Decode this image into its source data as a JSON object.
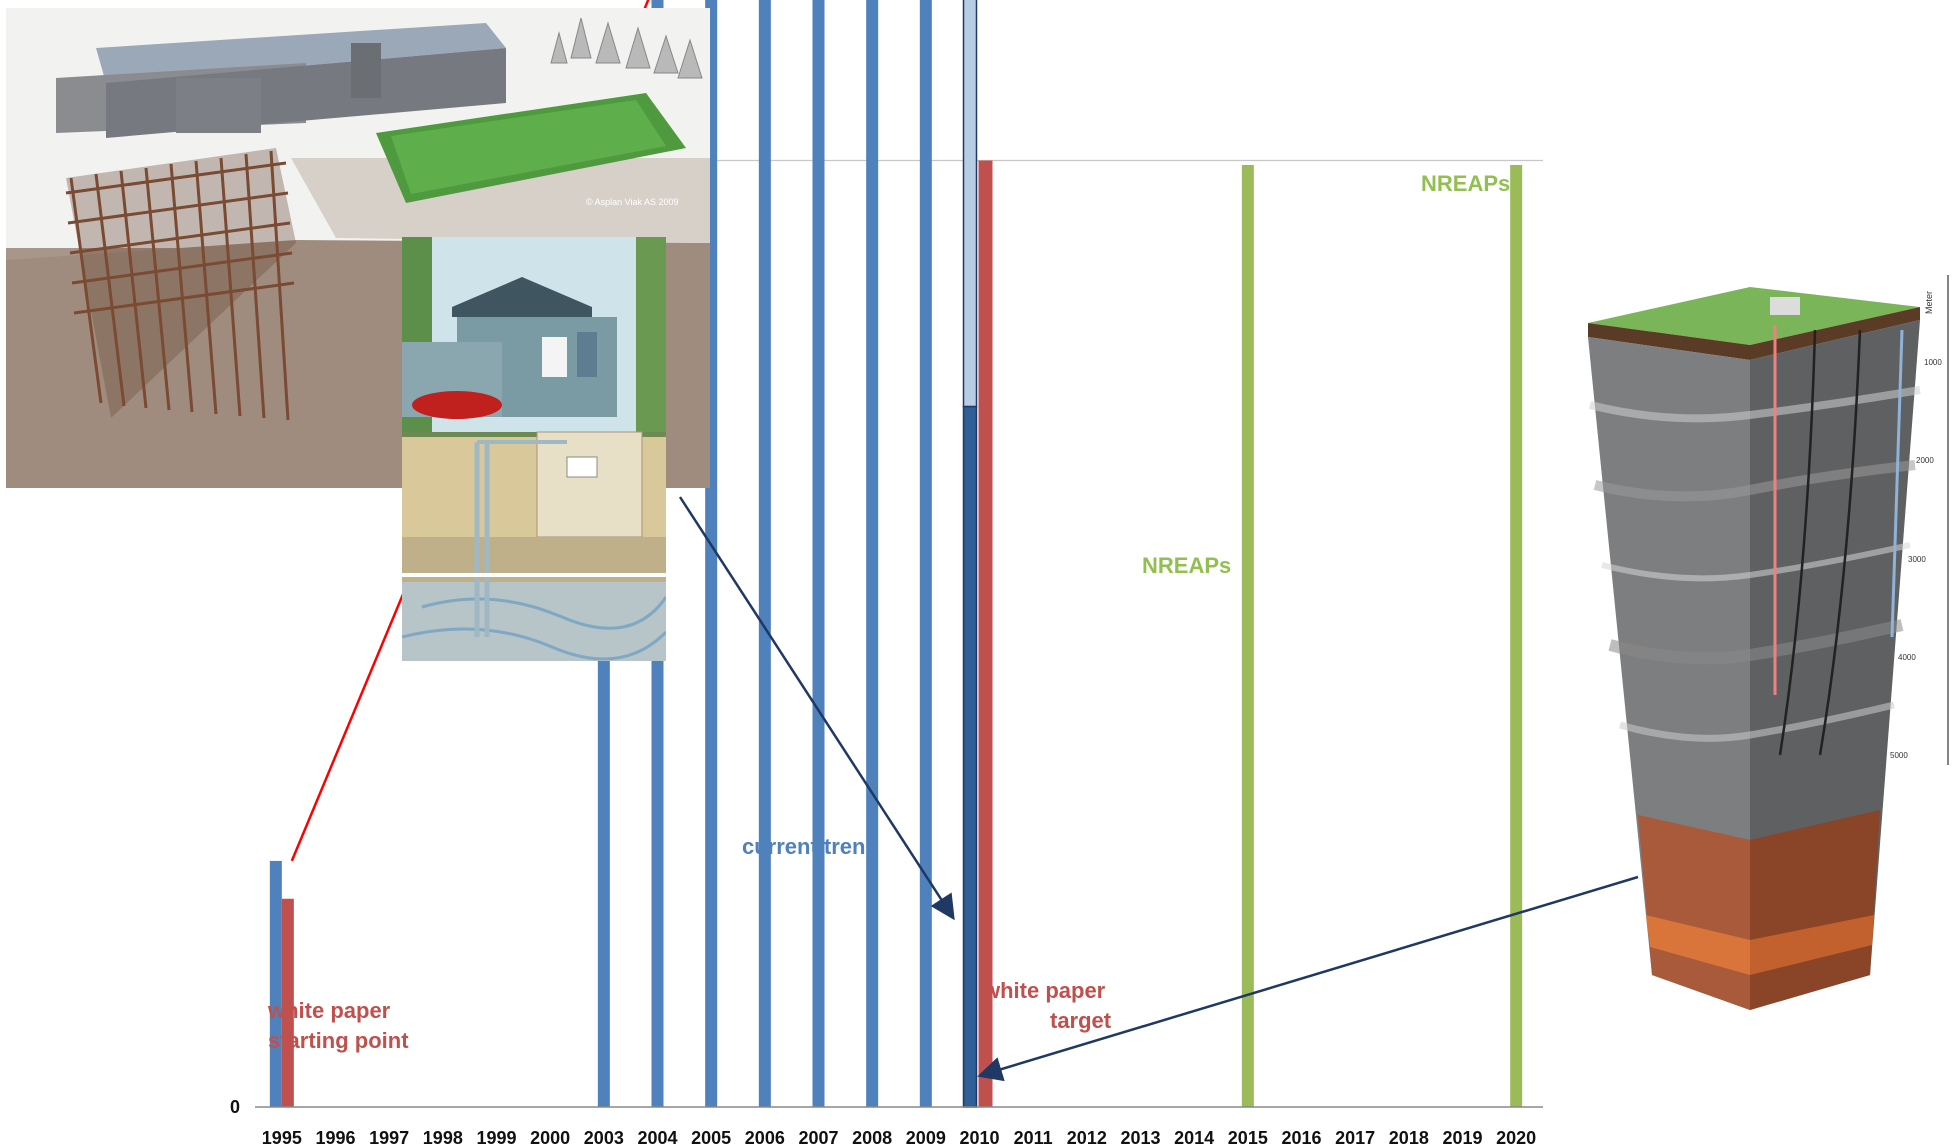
{
  "chart_data": {
    "type": "bar",
    "categories": [
      "1995",
      "1996",
      "1997",
      "1998",
      "1999",
      "2000",
      "2003",
      "2004",
      "2005",
      "2006",
      "2007",
      "2008",
      "2009",
      "2010",
      "2011",
      "2012",
      "2013",
      "2014",
      "2015",
      "2016",
      "2017",
      "2018",
      "2019",
      "2020"
    ],
    "yticks": [
      0,
      5000,
      10000,
      15000,
      20000,
      25000,
      30000
    ],
    "ylim": [
      0,
      50000
    ],
    "grid": true,
    "series": [
      {
        "values": [
          1300,
          0,
          0,
          0,
          0,
          0,
          5200,
          6100,
          7000,
          8000,
          9300,
          10800,
          12200,
          null,
          0,
          0,
          0,
          0,
          0,
          0,
          0,
          0,
          0,
          0
        ],
        "color": "#4f81bd"
      },
      {
        "values": [
          1100,
          0,
          0,
          0,
          0,
          0,
          0,
          0,
          0,
          0,
          0,
          0,
          0,
          5000,
          0,
          0,
          0,
          0,
          0,
          0,
          0,
          0,
          0,
          0
        ],
        "color": "#c0504d"
      },
      {
        "values": [
          0,
          0,
          0,
          0,
          0,
          0,
          0,
          0,
          0,
          0,
          0,
          0,
          0,
          0,
          0,
          0,
          0,
          0,
          27600,
          0,
          0,
          0,
          0,
          49500
        ],
        "color": "#9bbb59"
      }
    ],
    "current_trend_bar": {
      "category": "2010",
      "base": 3700,
      "top": 15600
    },
    "trend_curve": {
      "color": "#ff0000",
      "points": [
        [
          1995,
          1300
        ],
        [
          2000,
          4700
        ],
        [
          2003,
          5400
        ],
        [
          2005,
          6800
        ],
        [
          2007,
          9400
        ],
        [
          2009,
          12800
        ],
        [
          2010,
          14600
        ],
        [
          2012,
          18800
        ],
        [
          2015,
          27600
        ],
        [
          2018,
          39000
        ],
        [
          2020,
          48800
        ]
      ]
    },
    "annotations": [
      {
        "text": "white paper",
        "color": "#c0504d"
      },
      {
        "text": "starting point",
        "color": "#c0504d"
      },
      {
        "text": "current trend",
        "color": "#4f81bd"
      },
      {
        "text": "white paper",
        "color": "#c0504d"
      },
      {
        "text": "target",
        "color": "#c0504d"
      },
      {
        "text": "NREAPs",
        "color": "#92c050"
      },
      {
        "text": "NREAPs",
        "color": "#92c050"
      }
    ]
  },
  "images": {
    "building_credit": "© Asplan Viak AS 2009",
    "depth_unit": "Meter",
    "depth_ticks": [
      "0",
      "1000",
      "2000",
      "3000",
      "4000",
      "5000"
    ]
  },
  "colors": {
    "arrow": "#1f3864",
    "grid": "#c8c8c8"
  }
}
